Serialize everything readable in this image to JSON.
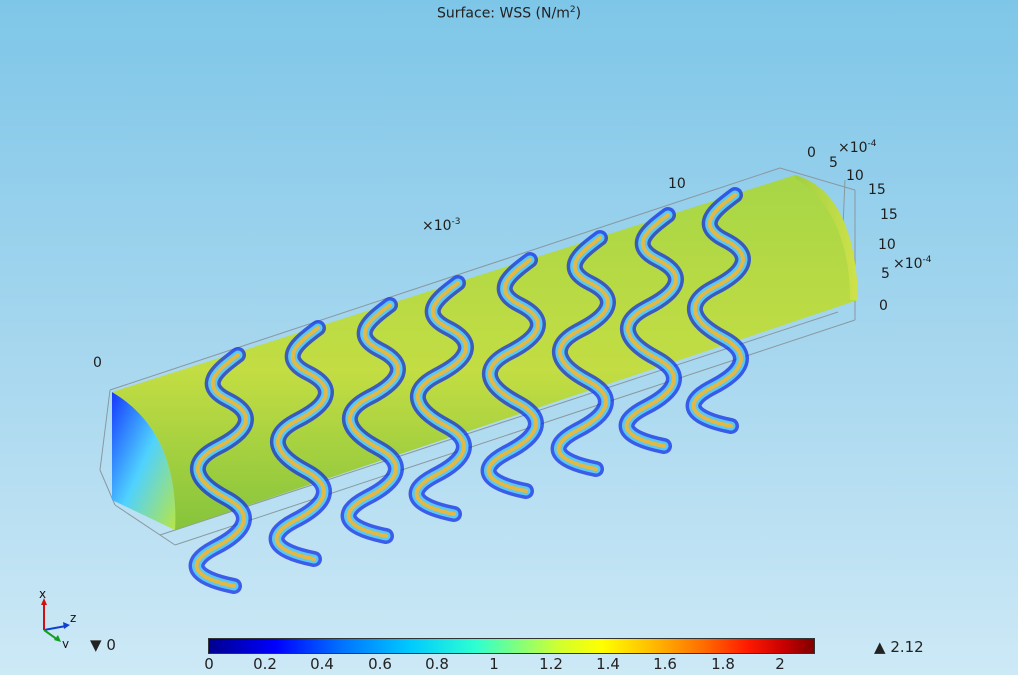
{
  "plot": {
    "title_prefix": "Surface: WSS (N/m",
    "title_sup": "2",
    "title_suffix": ")"
  },
  "axes": {
    "long_axis_exponent_label": "×10",
    "long_axis_exponent": "-3",
    "long_axis_tick_0": "0",
    "long_axis_tick_10": "10",
    "depth_axis_exponent_label": "×10",
    "depth_axis_exponent": "-4",
    "depth_axis_ticks": [
      "0",
      "5",
      "10",
      "15"
    ],
    "height_axis_exponent_label": "×10",
    "height_axis_exponent": "-4",
    "height_axis_ticks": [
      "15",
      "10",
      "5",
      "0"
    ]
  },
  "triad": {
    "x": "x",
    "y": "y",
    "z": "z"
  },
  "legend": {
    "min_marker": "▼",
    "min_value": "0",
    "max_marker": "▲",
    "max_value": "2.12",
    "ticks": [
      "0",
      "0.2",
      "0.4",
      "0.6",
      "0.8",
      "1",
      "1.2",
      "1.4",
      "1.6",
      "1.8",
      "2"
    ]
  },
  "colors": {
    "background_top": "#7ec6e8",
    "background_bottom": "#cde9f6",
    "surface_base": "#9acd3c",
    "strut": "#e0b540",
    "low_wss": "#0000ff"
  }
}
